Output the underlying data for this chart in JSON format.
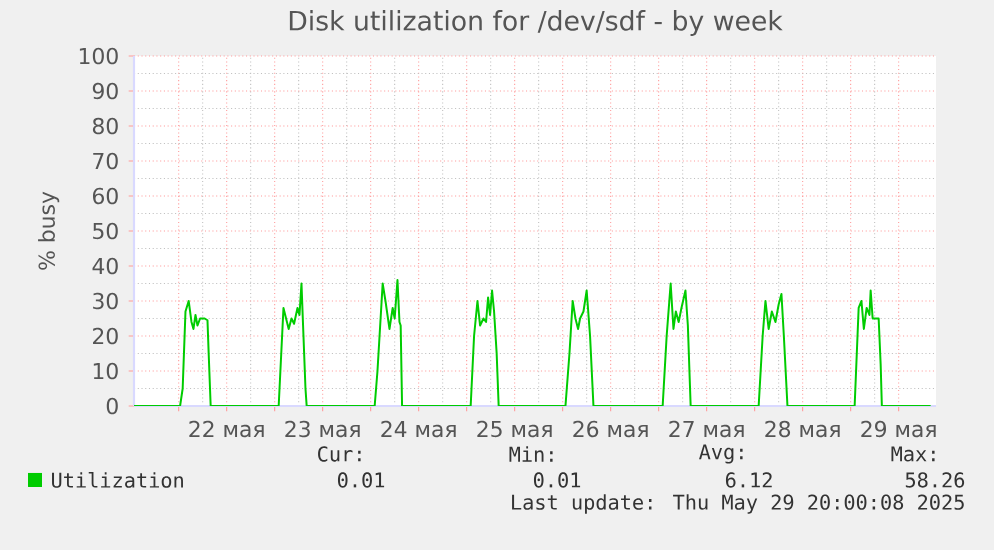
{
  "chart_data": {
    "type": "line",
    "title": "Disk utilization for /dev/sdf - by week",
    "ylabel": "% busy",
    "xlim": [
      "2025-05-21T12:50",
      "2025-05-29T21:20"
    ],
    "ylim": [
      0,
      100
    ],
    "yticks": [
      0,
      10,
      20,
      30,
      40,
      50,
      60,
      70,
      80,
      90,
      100
    ],
    "xticks": [
      {
        "value": "2025-05-22T00:00",
        "label": null
      },
      {
        "value": "2025-05-22T12:00",
        "label": "22 мая"
      },
      {
        "value": "2025-05-23T00:00",
        "label": null
      },
      {
        "value": "2025-05-23T12:00",
        "label": "23 мая"
      },
      {
        "value": "2025-05-24T00:00",
        "label": null
      },
      {
        "value": "2025-05-24T12:00",
        "label": "24 мая"
      },
      {
        "value": "2025-05-25T00:00",
        "label": null
      },
      {
        "value": "2025-05-25T12:00",
        "label": "25 мая"
      },
      {
        "value": "2025-05-26T00:00",
        "label": null
      },
      {
        "value": "2025-05-26T12:00",
        "label": "26 мая"
      },
      {
        "value": "2025-05-27T00:00",
        "label": null
      },
      {
        "value": "2025-05-27T12:00",
        "label": "27 мая"
      },
      {
        "value": "2025-05-28T00:00",
        "label": null
      },
      {
        "value": "2025-05-28T12:00",
        "label": "28 мая"
      },
      {
        "value": "2025-05-29T00:00",
        "label": null
      },
      {
        "value": "2025-05-29T12:00",
        "label": "29 мая"
      }
    ],
    "grid": true,
    "legend": "bottom left",
    "marker": "none",
    "line_style": "solid",
    "series": [
      {
        "name": "Utilization",
        "color": "#00cc00",
        "x": [
          "2025-05-21T12:50",
          "2025-05-22T00:21",
          "2025-05-22T01:00",
          "2025-05-22T01:42",
          "2025-05-22T02:30",
          "2025-05-22T03:12",
          "2025-05-22T03:42",
          "2025-05-22T04:12",
          "2025-05-22T04:42",
          "2025-05-22T05:21",
          "2025-05-22T06:30",
          "2025-05-22T07:12",
          "2025-05-22T07:30",
          "2025-05-22T08:00",
          "2025-05-23T01:00",
          "2025-05-23T02:12",
          "2025-05-23T03:30",
          "2025-05-23T04:12",
          "2025-05-23T04:51",
          "2025-05-23T05:42",
          "2025-05-23T06:12",
          "2025-05-23T06:42",
          "2025-05-23T07:12",
          "2025-05-23T07:42",
          "2025-05-23T08:00",
          "2025-05-24T01:00",
          "2025-05-24T01:42",
          "2025-05-24T03:00",
          "2025-05-24T03:42",
          "2025-05-24T04:42",
          "2025-05-24T05:30",
          "2025-05-24T06:00",
          "2025-05-24T06:42",
          "2025-05-24T07:12",
          "2025-05-24T07:30",
          "2025-05-24T07:51",
          "2025-05-25T01:00",
          "2025-05-25T01:51",
          "2025-05-25T02:42",
          "2025-05-25T03:21",
          "2025-05-25T04:12",
          "2025-05-25T04:51",
          "2025-05-25T05:21",
          "2025-05-25T05:51",
          "2025-05-25T06:21",
          "2025-05-25T06:51",
          "2025-05-25T07:30",
          "2025-05-25T08:00",
          "2025-05-26T00:42",
          "2025-05-26T01:42",
          "2025-05-26T02:30",
          "2025-05-26T03:12",
          "2025-05-26T03:51",
          "2025-05-26T04:21",
          "2025-05-26T05:12",
          "2025-05-26T06:00",
          "2025-05-26T06:51",
          "2025-05-26T07:42",
          "2025-05-27T01:00",
          "2025-05-27T02:00",
          "2025-05-27T03:00",
          "2025-05-27T03:42",
          "2025-05-27T04:18",
          "2025-05-27T05:00",
          "2025-05-27T05:42",
          "2025-05-27T06:42",
          "2025-05-27T07:18",
          "2025-05-27T08:00",
          "2025-05-28T01:00",
          "2025-05-28T02:00",
          "2025-05-28T02:42",
          "2025-05-28T03:30",
          "2025-05-28T04:18",
          "2025-05-28T05:12",
          "2025-05-28T06:00",
          "2025-05-28T06:42",
          "2025-05-28T07:18",
          "2025-05-28T08:12",
          "2025-05-29T01:00",
          "2025-05-29T02:00",
          "2025-05-29T02:42",
          "2025-05-29T03:18",
          "2025-05-29T04:00",
          "2025-05-29T04:42",
          "2025-05-29T05:00",
          "2025-05-29T05:30",
          "2025-05-29T06:18",
          "2025-05-29T07:00",
          "2025-05-29T07:30",
          "2025-05-29T07:48",
          "2025-05-29T20:00"
        ],
        "values": [
          0,
          0,
          5,
          27,
          30,
          24,
          22,
          26,
          23,
          25,
          25,
          24.5,
          15,
          0,
          0,
          28,
          22,
          25,
          23.5,
          28,
          26,
          35,
          20,
          5,
          0,
          0,
          10,
          35,
          30,
          22,
          28,
          25,
          36,
          24,
          23,
          0,
          0,
          20,
          30,
          23,
          25,
          24,
          31,
          26,
          33,
          27,
          15,
          0,
          0,
          15,
          30,
          25,
          22,
          25,
          27,
          33,
          20,
          0,
          0,
          20,
          35,
          22,
          27,
          24,
          28,
          33,
          23,
          0,
          0,
          20,
          30,
          22,
          27,
          24,
          29,
          32,
          20,
          0,
          0,
          28,
          30,
          22,
          28,
          26,
          33,
          25,
          25,
          25,
          12,
          0,
          0
        ]
      }
    ],
    "annotations": [
      "Cur:",
      "Min:",
      "Avg:",
      "Max:",
      "0.01",
      "0.01",
      "6.12",
      "58.26",
      "Last update: Thu May 29 20:00:08 2025"
    ]
  }
}
